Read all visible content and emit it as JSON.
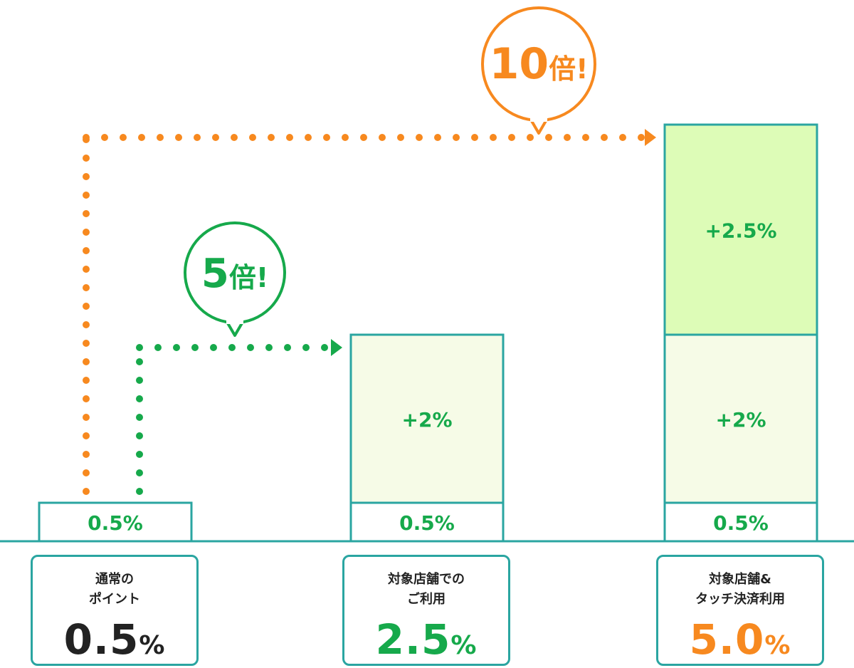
{
  "chart_data": {
    "type": "bar",
    "stacked": true,
    "categories": [
      "通常のポイント",
      "対象店舗でのご利用",
      "対象店舗&タッチ決済利用"
    ],
    "series": [
      {
        "values": [
          0.5,
          0.5,
          0.5
        ],
        "labels": [
          "0.5%",
          "0.5%",
          "0.5%"
        ],
        "fill": "#ffffff"
      },
      {
        "values": [
          0,
          2,
          2
        ],
        "labels": [
          "",
          "+2%",
          "+2%"
        ],
        "fill": "#f6fbe7"
      },
      {
        "values": [
          0,
          0,
          2.5
        ],
        "labels": [
          "",
          "",
          "+2.5%"
        ],
        "fill": "#ddfcb7"
      }
    ],
    "unit": "%",
    "ylim": [
      0,
      5.0
    ],
    "annotations": [
      {
        "text_num": "5",
        "text_suffix": "倍!",
        "from": 0,
        "to": 1,
        "color": "#16a94b"
      },
      {
        "text_num": "10",
        "text_suffix": "倍!",
        "from": 0,
        "to": 2,
        "color": "#f7891f"
      }
    ]
  },
  "category_labels": [
    {
      "line1": "通常の",
      "line2": "ポイント",
      "value": "0.5",
      "unit": "%",
      "color": "#222222"
    },
    {
      "line1": "対象店舗での",
      "line2": "ご利用",
      "value": "2.5",
      "unit": "%",
      "color": "#16a94b"
    },
    {
      "line1": "対象店舗&",
      "line2": "タッチ決済利用",
      "value": "5.0",
      "unit": "%",
      "color": "#f7891f"
    }
  ],
  "colors": {
    "border": "#2aa5a1",
    "bar_text": "#16a94b",
    "green": "#16a94b",
    "orange": "#f7891f"
  }
}
